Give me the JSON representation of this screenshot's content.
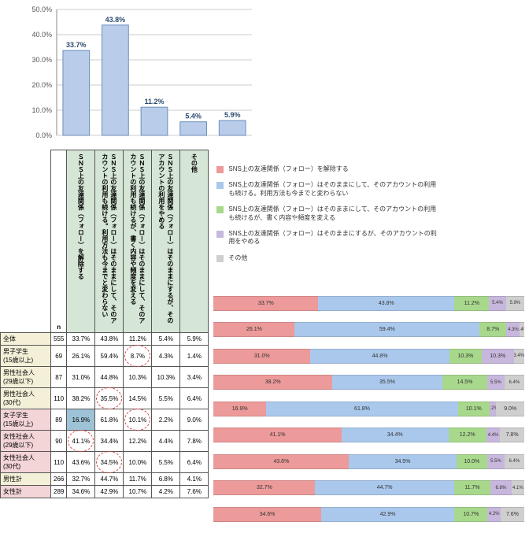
{
  "colors": {
    "c1": "#ec9a9a",
    "c2": "#aac8ec",
    "c3": "#a8d88c",
    "c4": "#c7b7dc",
    "c5": "#cfcfcf",
    "bar_blue": "#b9cdeb",
    "bar_border": "#6b8db8",
    "grid": "#bdbdbd",
    "axis_text": "#555",
    "head_green": "#d6e6d6",
    "row_pink": "#f3d4d7",
    "row_cream": "#f4f0d8",
    "cell_blue": "#9ec3d6"
  },
  "bar_chart": {
    "ylim": [
      0,
      50
    ],
    "yticks": [
      "0.0%",
      "10.0%",
      "20.0%",
      "30.0%",
      "40.0%",
      "50.0%"
    ],
    "values": [
      33.7,
      43.8,
      11.2,
      5.4,
      5.9
    ],
    "labels": [
      "33.7%",
      "43.8%",
      "11.2%",
      "5.4%",
      "5.9%"
    ]
  },
  "legend_labels": [
    "SNS上の友達関係（フォロー）を解除する",
    "SNS上の友達関係（フォロー）はそのままにして、そのアカウントの利用も続ける。利用方法も今までと変わらない",
    "SNS上の友達関係（フォロー）はそのままにして、そのアカウントの利用も続けるが、書く内容や頻度を変える",
    "SNS上の友達関係（フォロー）はそのままにするが、そのアカウントの利用をやめる",
    "その他"
  ],
  "table": {
    "col_headers": [
      "",
      "n",
      "ＳＮＳ上の友達関係（フォロー）を解除する",
      "ＳＮＳ上の友達関係（フォロー）はそのままにして、そのアカウントの利用も続ける。利用方法も今までと変わらない",
      "ＳＮＳ上の友達関係（フォロー）はそのままにして、そのアカウントの利用も続けるが、書く内容や頻度を変える",
      "ＳＮＳ上の友達関係（フォロー）はそのままにするが、そのアカウントの利用をやめる",
      "その他"
    ],
    "rows": [
      {
        "label": "全体",
        "n": 555,
        "v": [
          "33.7%",
          "43.8%",
          "11.2%",
          "5.4%",
          "5.9%"
        ],
        "bg": "row_cream"
      },
      {
        "label": "男子学生\n(15歳以上)",
        "n": 69,
        "v": [
          "26.1%",
          "59.4%",
          "8.7%",
          "4.3%",
          "1.4%"
        ],
        "bg": "row_cream",
        "circle": [
          2
        ]
      },
      {
        "label": "男性社会人\n(29歳以下)",
        "n": 87,
        "v": [
          "31.0%",
          "44.8%",
          "10.3%",
          "10.3%",
          "3.4%"
        ],
        "bg": "row_cream"
      },
      {
        "label": "男性社会人\n(30代)",
        "n": 110,
        "v": [
          "38.2%",
          "35.5%",
          "14.5%",
          "5.5%",
          "6.4%"
        ],
        "bg": "row_cream",
        "circle": [
          1
        ]
      },
      {
        "label": "女子学生\n(15歳以上)",
        "n": 89,
        "v": [
          "16.9%",
          "61.8%",
          "10.1%",
          "2.2%",
          "9.0%"
        ],
        "bg": "row_pink",
        "circle": [
          2
        ],
        "cell_bg": {
          "0": "cell_blue"
        }
      },
      {
        "label": "女性社会人\n(29歳以下)",
        "n": 90,
        "v": [
          "41.1%",
          "34.4%",
          "12.2%",
          "4.4%",
          "7.8%"
        ],
        "bg": "row_pink",
        "circle": [
          0
        ]
      },
      {
        "label": "女性社会人\n(30代)",
        "n": 110,
        "v": [
          "43.6%",
          "34.5%",
          "10.0%",
          "5.5%",
          "6.4%"
        ],
        "bg": "row_pink",
        "circle": [
          1
        ]
      },
      {
        "label": "男性計",
        "n": 266,
        "v": [
          "32.7%",
          "44.7%",
          "11.7%",
          "6.8%",
          "4.1%"
        ],
        "bg": "row_cream"
      },
      {
        "label": "女性計",
        "n": 289,
        "v": [
          "34.6%",
          "42.9%",
          "10.7%",
          "4.2%",
          "7.6%"
        ],
        "bg": "row_pink"
      }
    ]
  },
  "stacked": [
    [
      33.7,
      43.8,
      11.2,
      5.4,
      5.9
    ],
    [
      26.1,
      59.4,
      8.7,
      4.3,
      1.4
    ],
    [
      31.0,
      44.8,
      10.3,
      10.3,
      3.4
    ],
    [
      38.2,
      35.5,
      14.5,
      5.5,
      6.4
    ],
    [
      16.9,
      61.8,
      10.1,
      2.2,
      9.0
    ],
    [
      41.1,
      34.4,
      12.2,
      4.4,
      7.8
    ],
    [
      43.6,
      34.5,
      10.0,
      5.5,
      6.4
    ],
    [
      32.7,
      44.7,
      11.7,
      6.8,
      4.1
    ],
    [
      34.6,
      42.9,
      10.7,
      4.2,
      7.6
    ]
  ]
}
